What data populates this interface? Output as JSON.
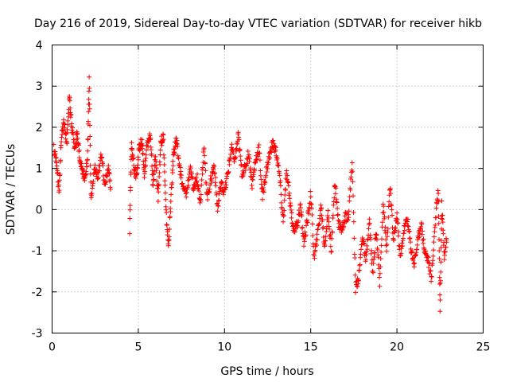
{
  "chart_data": {
    "type": "scatter",
    "title": "Day 216 of 2019, Sidereal Day-to-day VTEC variation (SDTVAR) for receiver hikb",
    "xlabel": "GPS time / hours",
    "ylabel": "SDTVAR / TECUs",
    "xlim": [
      0,
      25
    ],
    "ylim": [
      -3,
      4
    ],
    "xticks": [
      0,
      5,
      10,
      15,
      20,
      25
    ],
    "yticks": [
      -3,
      -2,
      -1,
      0,
      1,
      2,
      3,
      4
    ],
    "grid": true,
    "marker": "plus",
    "marker_color": "#ff0000",
    "series": [
      {
        "name": "SDTVAR",
        "approximate_trace": [
          [
            0.1,
            1.5
          ],
          [
            0.25,
            1.2
          ],
          [
            0.4,
            0.4
          ],
          [
            0.55,
            1.8
          ],
          [
            0.7,
            2.2
          ],
          [
            0.85,
            1.6
          ],
          [
            1.0,
            2.7
          ],
          [
            1.15,
            2.0
          ],
          [
            1.3,
            1.5
          ],
          [
            1.45,
            1.8
          ],
          [
            1.6,
            1.2
          ],
          [
            1.75,
            1.0
          ],
          [
            1.9,
            0.7
          ],
          [
            2.05,
            1.2
          ],
          [
            2.15,
            3.2
          ],
          [
            2.25,
            0.3
          ],
          [
            2.45,
            1.0
          ],
          [
            2.65,
            0.8
          ],
          [
            2.85,
            1.3
          ],
          [
            3.05,
            0.6
          ],
          [
            3.25,
            1.0
          ],
          [
            3.4,
            0.5
          ],
          [
            4.5,
            -0.5
          ],
          [
            4.6,
            1.6
          ],
          [
            4.75,
            1.0
          ],
          [
            4.9,
            0.8
          ],
          [
            5.05,
            1.5
          ],
          [
            5.2,
            1.7
          ],
          [
            5.35,
            0.9
          ],
          [
            5.5,
            1.5
          ],
          [
            5.7,
            1.8
          ],
          [
            5.85,
            0.6
          ],
          [
            6.0,
            1.3
          ],
          [
            6.15,
            0.3
          ],
          [
            6.3,
            1.6
          ],
          [
            6.45,
            1.8
          ],
          [
            6.6,
            0.0
          ],
          [
            6.75,
            -0.9
          ],
          [
            6.9,
            0.3
          ],
          [
            7.05,
            1.4
          ],
          [
            7.2,
            1.7
          ],
          [
            7.4,
            1.0
          ],
          [
            7.6,
            0.5
          ],
          [
            7.8,
            0.4
          ],
          [
            8.0,
            1.0
          ],
          [
            8.2,
            0.5
          ],
          [
            8.4,
            0.8
          ],
          [
            8.6,
            0.2
          ],
          [
            8.8,
            1.5
          ],
          [
            9.0,
            0.3
          ],
          [
            9.2,
            0.7
          ],
          [
            9.4,
            1.1
          ],
          [
            9.6,
            0.0
          ],
          [
            9.8,
            0.6
          ],
          [
            10.0,
            0.4
          ],
          [
            10.2,
            0.9
          ],
          [
            10.4,
            1.5
          ],
          [
            10.6,
            1.2
          ],
          [
            10.8,
            1.8
          ],
          [
            11.0,
            0.9
          ],
          [
            11.2,
            1.0
          ],
          [
            11.4,
            1.4
          ],
          [
            11.6,
            0.6
          ],
          [
            11.8,
            1.2
          ],
          [
            12.0,
            1.5
          ],
          [
            12.2,
            0.3
          ],
          [
            12.4,
            0.9
          ],
          [
            12.6,
            1.3
          ],
          [
            12.8,
            1.6
          ],
          [
            13.0,
            1.4
          ],
          [
            13.2,
            0.8
          ],
          [
            13.4,
            -0.3
          ],
          [
            13.6,
            0.9
          ],
          [
            13.8,
            0.2
          ],
          [
            14.0,
            -0.5
          ],
          [
            14.2,
            -0.4
          ],
          [
            14.4,
            0.1
          ],
          [
            14.6,
            -0.8
          ],
          [
            14.8,
            -0.3
          ],
          [
            15.0,
            0.4
          ],
          [
            15.2,
            -1.2
          ],
          [
            15.4,
            -0.6
          ],
          [
            15.6,
            0.1
          ],
          [
            15.8,
            -0.9
          ],
          [
            16.0,
            -0.1
          ],
          [
            16.2,
            -1.0
          ],
          [
            16.4,
            0.7
          ],
          [
            16.6,
            -0.3
          ],
          [
            16.8,
            -0.5
          ],
          [
            17.0,
            -0.2
          ],
          [
            17.2,
            -0.1
          ],
          [
            17.4,
            1.2
          ],
          [
            17.6,
            -1.9
          ],
          [
            17.8,
            -1.6
          ],
          [
            18.0,
            -0.6
          ],
          [
            18.2,
            -1.3
          ],
          [
            18.4,
            -0.3
          ],
          [
            18.6,
            -1.6
          ],
          [
            18.8,
            -0.5
          ],
          [
            19.0,
            -1.8
          ],
          [
            19.2,
            0.2
          ],
          [
            19.4,
            -1.0
          ],
          [
            19.6,
            0.6
          ],
          [
            19.8,
            -0.8
          ],
          [
            20.0,
            -0.1
          ],
          [
            20.2,
            -1.2
          ],
          [
            20.4,
            -0.5
          ],
          [
            20.6,
            -0.2
          ],
          [
            20.8,
            -0.9
          ],
          [
            21.0,
            -1.3
          ],
          [
            21.2,
            -0.8
          ],
          [
            21.4,
            -0.3
          ],
          [
            21.6,
            -1.0
          ],
          [
            21.8,
            -1.2
          ],
          [
            22.0,
            -1.7
          ],
          [
            22.2,
            -0.4
          ],
          [
            22.4,
            0.5
          ],
          [
            22.5,
            -2.4
          ],
          [
            22.6,
            0.1
          ],
          [
            22.75,
            -1.1
          ],
          [
            22.9,
            -0.7
          ]
        ]
      }
    ]
  }
}
